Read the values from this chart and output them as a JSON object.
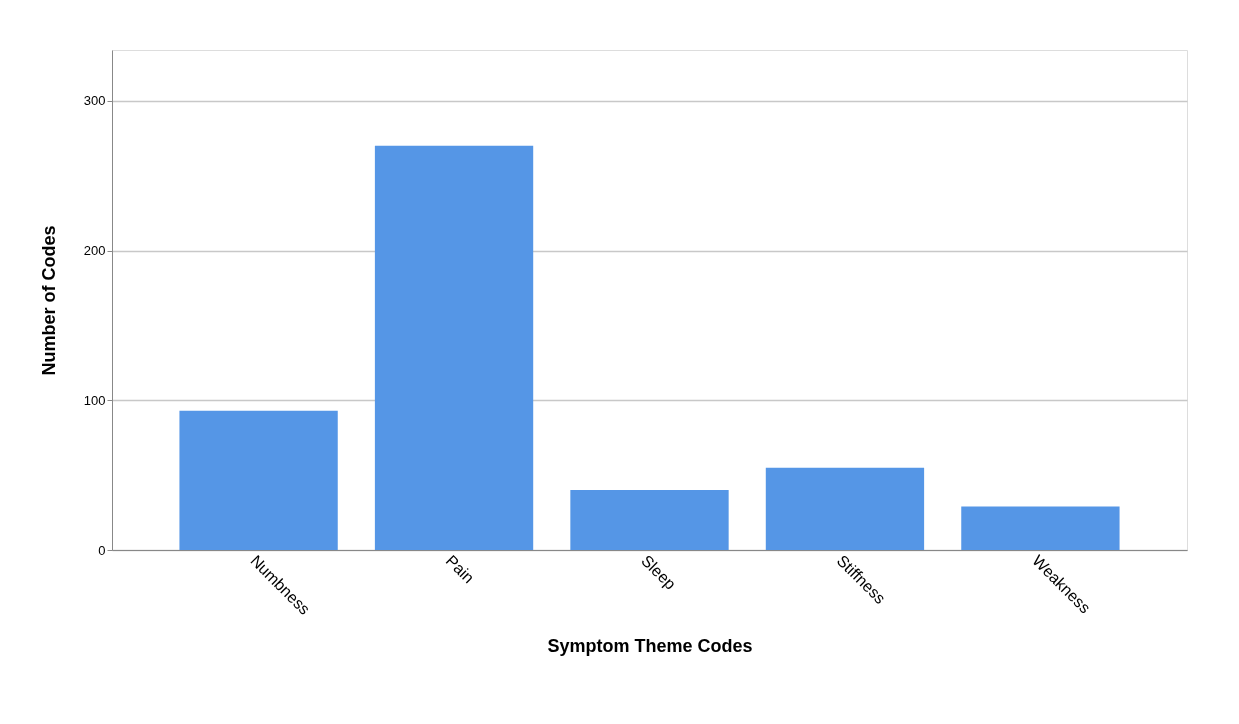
{
  "chart_data": {
    "type": "bar",
    "xlabel": "Symptom Theme Codes",
    "ylabel": "Number of Codes",
    "categories": [
      "Numbness",
      "Pain",
      "Sleep",
      "Stiffness",
      "Weakness"
    ],
    "values": [
      93,
      270,
      40,
      55,
      29
    ],
    "color": "#5596e6",
    "ylim": [
      0,
      334
    ],
    "yticks": [
      0,
      100,
      200,
      300
    ],
    "grid": "y"
  }
}
